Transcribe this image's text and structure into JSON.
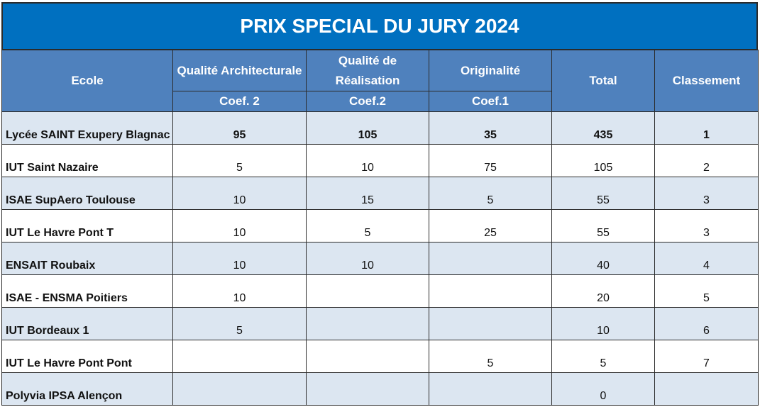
{
  "title": "PRIX SPECIAL DU JURY 2024",
  "table": {
    "columns": [
      {
        "label": "Ecole"
      },
      {
        "label": "Qualité Architecturale",
        "coef": "Coef. 2"
      },
      {
        "label": "Qualité de Réalisation",
        "coef": "Coef.2"
      },
      {
        "label": "Originalité",
        "coef": "Coef.1"
      },
      {
        "label": "Total"
      },
      {
        "label": "Classement"
      }
    ],
    "rows": [
      [
        "Lycée SAINT Exupery Blagnac",
        95,
        105,
        35,
        435,
        1
      ],
      [
        "IUT Saint Nazaire",
        5,
        10,
        75,
        105,
        2
      ],
      [
        "ISAE SupAero Toulouse",
        10,
        15,
        5,
        55,
        3
      ],
      [
        "IUT Le Havre Pont T",
        10,
        5,
        25,
        55,
        3
      ],
      [
        "ENSAIT Roubaix",
        10,
        10,
        null,
        40,
        4
      ],
      [
        "ISAE - ENSMA Poitiers",
        10,
        null,
        null,
        20,
        5
      ],
      [
        "IUT Bordeaux 1",
        5,
        null,
        null,
        10,
        6
      ],
      [
        "IUT Le Havre Pont Pont",
        null,
        null,
        5,
        5,
        7
      ],
      [
        "Polyvia IPSA Alençon",
        null,
        null,
        null,
        0,
        null
      ]
    ]
  }
}
